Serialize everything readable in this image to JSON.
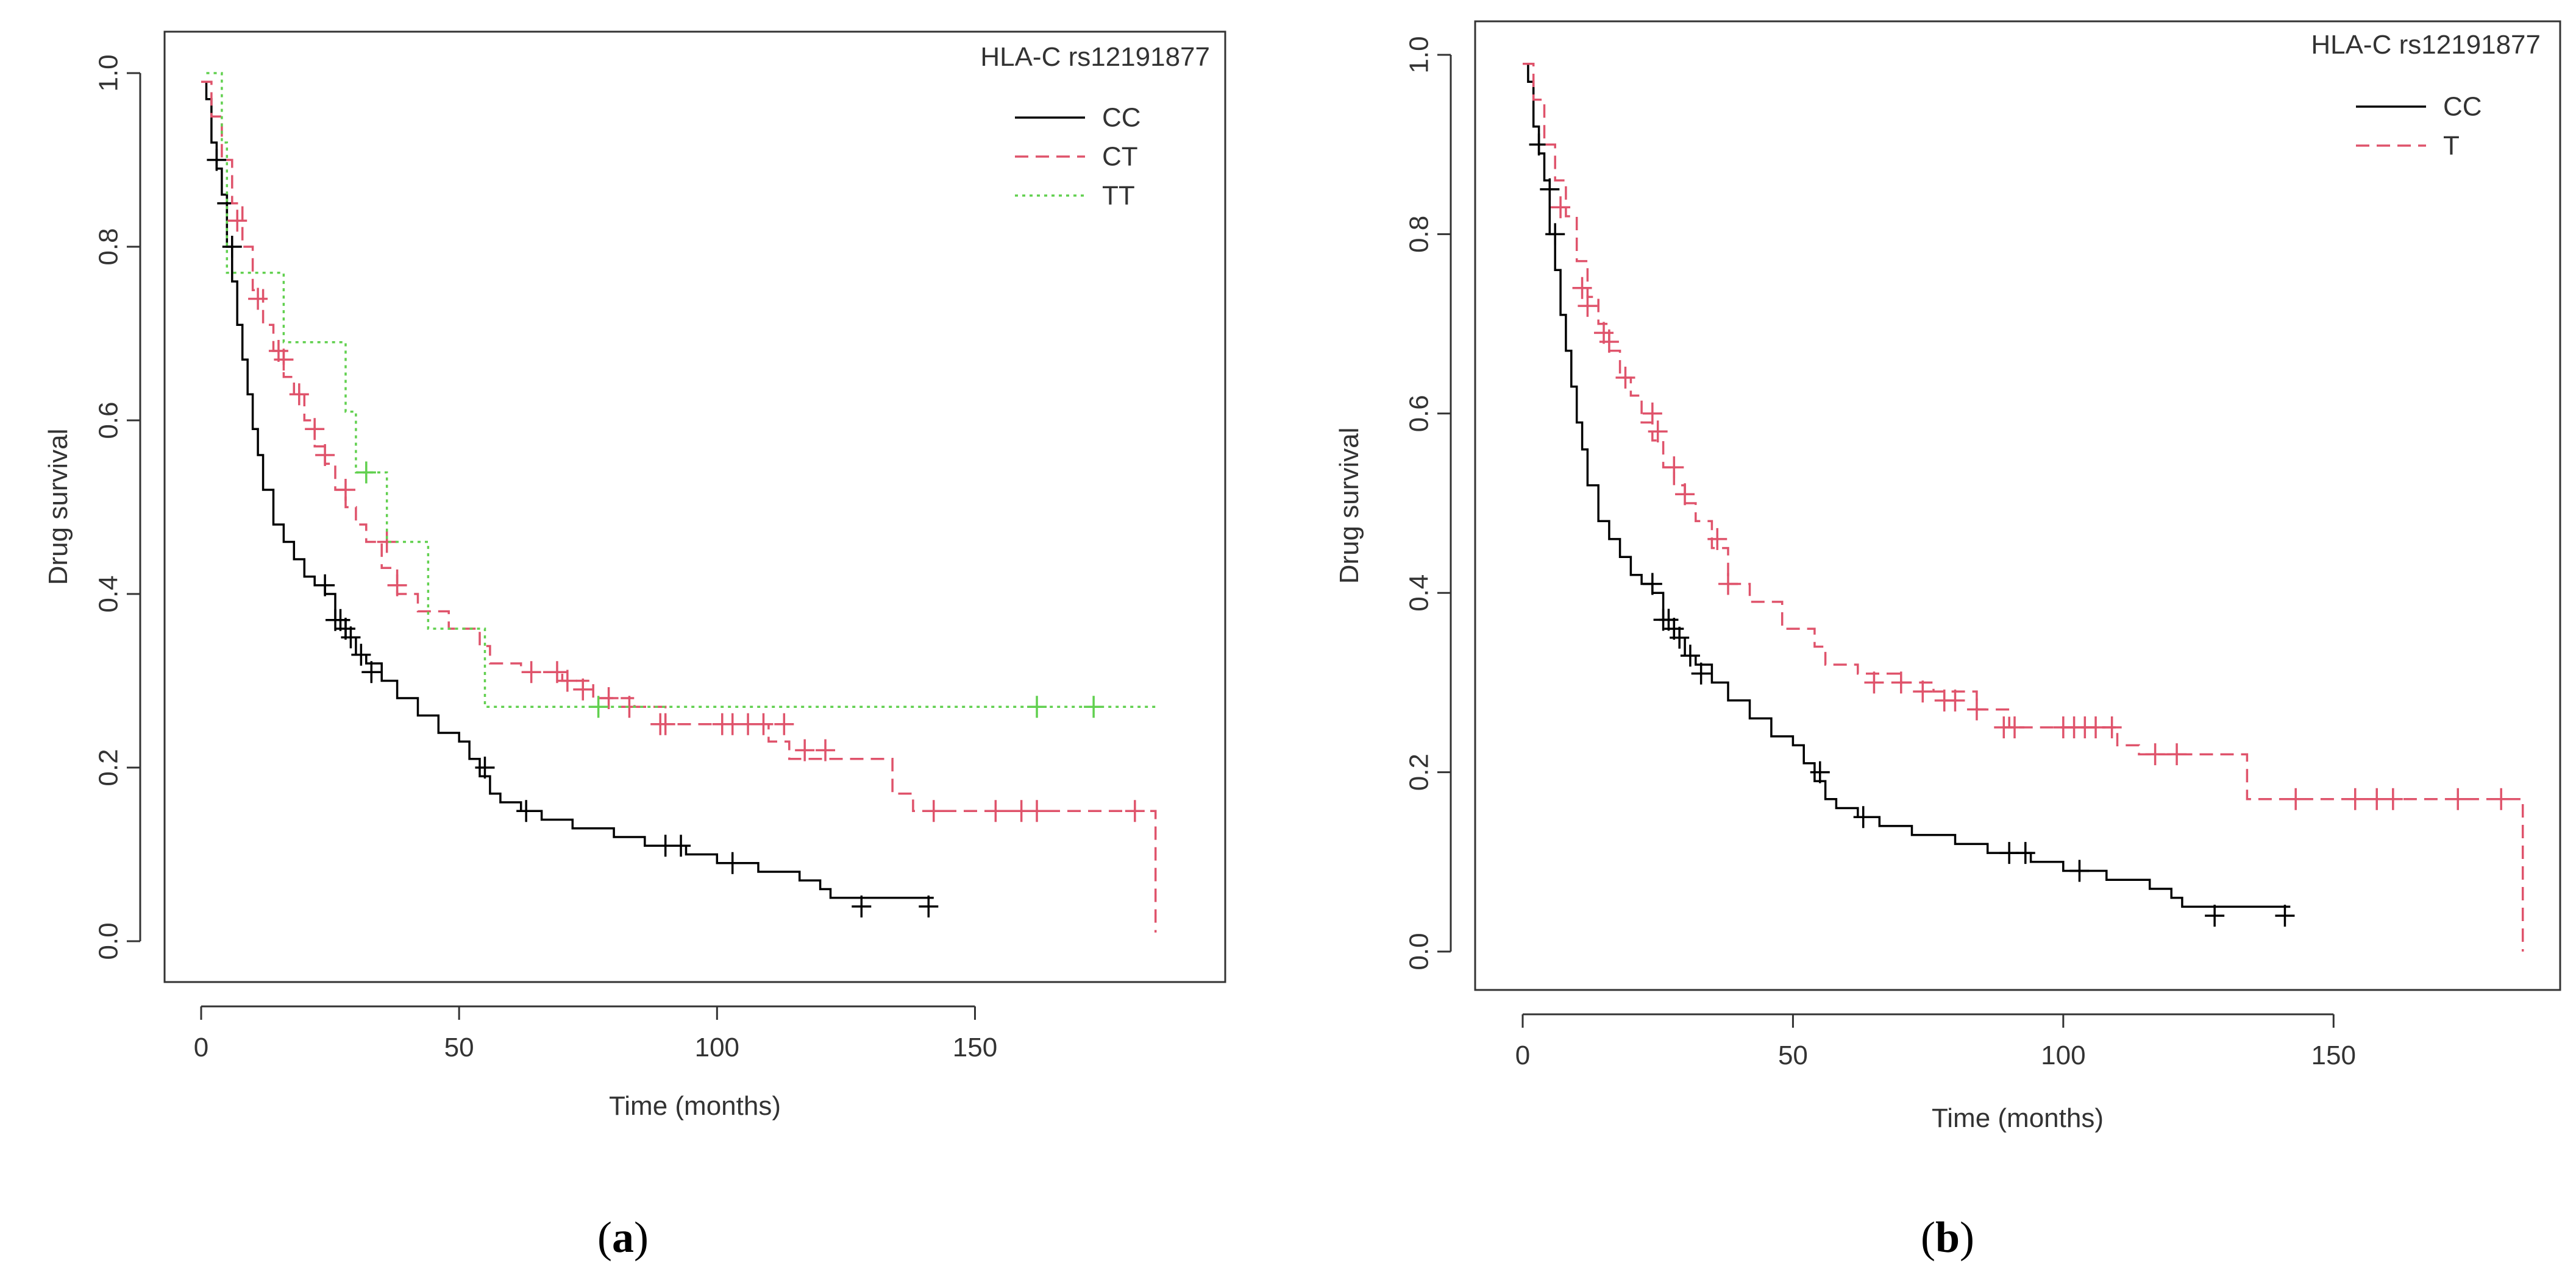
{
  "chart_data": [
    {
      "type": "line",
      "subtype": "kaplan-meier",
      "panel_label": "a",
      "xlabel": "Time (months)",
      "ylabel": "Drug survival",
      "xlim": [
        0,
        190
      ],
      "ylim": [
        0,
        1
      ],
      "xticks": [
        "0",
        "50",
        "100",
        "150"
      ],
      "xtick_values": [
        0,
        50,
        100,
        150
      ],
      "yticks": [
        "0.0",
        "0.2",
        "0.4",
        "0.6",
        "0.8",
        "1.0"
      ],
      "ytick_values": [
        0,
        0.2,
        0.4,
        0.6,
        0.8,
        1.0
      ],
      "legend_title": "HLA-C rs12191877",
      "legend_position": "top-right",
      "series": [
        {
          "name": "CC",
          "color": "#000000",
          "style": "solid",
          "x": [
            0,
            1,
            2,
            3,
            4,
            5,
            6,
            7,
            8,
            9,
            10,
            11,
            12,
            14,
            16,
            18,
            20,
            22,
            24,
            26,
            28,
            30,
            32,
            35,
            38,
            42,
            46,
            50,
            52,
            54,
            56,
            58,
            62,
            66,
            72,
            80,
            86,
            94,
            100,
            108,
            116,
            120,
            122,
            142
          ],
          "y": [
            0.99,
            0.97,
            0.92,
            0.89,
            0.86,
            0.8,
            0.76,
            0.71,
            0.67,
            0.63,
            0.59,
            0.56,
            0.52,
            0.48,
            0.46,
            0.44,
            0.42,
            0.41,
            0.4,
            0.37,
            0.35,
            0.33,
            0.32,
            0.3,
            0.28,
            0.26,
            0.24,
            0.23,
            0.21,
            0.19,
            0.17,
            0.16,
            0.15,
            0.14,
            0.13,
            0.12,
            0.11,
            0.1,
            0.09,
            0.08,
            0.07,
            0.06,
            0.05,
            0.05
          ],
          "censor_x": [
            3,
            5,
            6,
            24,
            26,
            27,
            28,
            29,
            31,
            33,
            55,
            63,
            90,
            93,
            103,
            128,
            141
          ],
          "censor_y": [
            0.9,
            0.85,
            0.8,
            0.41,
            0.37,
            0.37,
            0.36,
            0.35,
            0.33,
            0.31,
            0.2,
            0.15,
            0.11,
            0.11,
            0.09,
            0.04,
            0.04
          ]
        },
        {
          "name": "CT",
          "color": "#DF536B",
          "style": "dashed",
          "x": [
            0,
            2,
            4,
            6,
            8,
            10,
            12,
            14,
            16,
            18,
            20,
            22,
            24,
            26,
            28,
            30,
            32,
            35,
            38,
            42,
            48,
            54,
            56,
            62,
            70,
            76,
            84,
            90,
            100,
            110,
            114,
            134,
            138,
            184,
            185
          ],
          "y": [
            0.99,
            0.95,
            0.9,
            0.85,
            0.8,
            0.75,
            0.71,
            0.68,
            0.65,
            0.63,
            0.6,
            0.57,
            0.55,
            0.52,
            0.5,
            0.48,
            0.46,
            0.43,
            0.4,
            0.38,
            0.36,
            0.34,
            0.32,
            0.31,
            0.3,
            0.28,
            0.27,
            0.25,
            0.25,
            0.23,
            0.21,
            0.17,
            0.15,
            0.15,
            0.01
          ],
          "censor_x": [
            7,
            11,
            15,
            16,
            19,
            22,
            24,
            28,
            36,
            38,
            64,
            69,
            71,
            74,
            79,
            83,
            89,
            90,
            101,
            103,
            106,
            109,
            113,
            117,
            121,
            142,
            154,
            159,
            162,
            181
          ],
          "censor_y": [
            0.83,
            0.74,
            0.68,
            0.67,
            0.63,
            0.59,
            0.56,
            0.52,
            0.46,
            0.41,
            0.31,
            0.31,
            0.3,
            0.29,
            0.28,
            0.27,
            0.25,
            0.25,
            0.25,
            0.25,
            0.25,
            0.25,
            0.25,
            0.22,
            0.22,
            0.15,
            0.15,
            0.15,
            0.15,
            0.15
          ]
        },
        {
          "name": "TT",
          "color": "#61D04F",
          "style": "dotted",
          "x": [
            1,
            4,
            5,
            8,
            16,
            28,
            30,
            36,
            44,
            55,
            185
          ],
          "y": [
            1.0,
            0.92,
            0.77,
            0.77,
            0.69,
            0.61,
            0.54,
            0.46,
            0.36,
            0.27,
            0.27
          ],
          "censor_x": [
            32,
            77,
            162,
            173
          ],
          "censor_y": [
            0.54,
            0.27,
            0.27,
            0.27
          ]
        }
      ]
    },
    {
      "type": "line",
      "subtype": "kaplan-meier",
      "panel_label": "b",
      "xlabel": "Time (months)",
      "ylabel": "Drug survival",
      "xlim": [
        0,
        190
      ],
      "ylim": [
        0,
        1
      ],
      "xticks": [
        "0",
        "50",
        "100",
        "150"
      ],
      "xtick_values": [
        0,
        50,
        100,
        150
      ],
      "yticks": [
        "0.0",
        "0.2",
        "0.4",
        "0.6",
        "0.8",
        "1.0"
      ],
      "ytick_values": [
        0,
        0.2,
        0.4,
        0.6,
        0.8,
        1.0
      ],
      "legend_title": "HLA-C rs12191877",
      "legend_position": "top-right",
      "series": [
        {
          "name": "CC",
          "color": "#000000",
          "style": "solid",
          "x": [
            0,
            1,
            2,
            3,
            4,
            5,
            6,
            7,
            8,
            9,
            10,
            11,
            12,
            14,
            16,
            18,
            20,
            22,
            24,
            26,
            28,
            30,
            32,
            35,
            38,
            42,
            46,
            50,
            52,
            54,
            56,
            58,
            62,
            66,
            72,
            80,
            86,
            94,
            100,
            108,
            116,
            120,
            122,
            142
          ],
          "y": [
            0.99,
            0.97,
            0.92,
            0.89,
            0.86,
            0.8,
            0.76,
            0.71,
            0.67,
            0.63,
            0.59,
            0.56,
            0.52,
            0.48,
            0.46,
            0.44,
            0.42,
            0.41,
            0.4,
            0.37,
            0.35,
            0.33,
            0.32,
            0.3,
            0.28,
            0.26,
            0.24,
            0.23,
            0.21,
            0.19,
            0.17,
            0.16,
            0.15,
            0.14,
            0.13,
            0.12,
            0.11,
            0.1,
            0.09,
            0.08,
            0.07,
            0.06,
            0.05,
            0.05
          ],
          "censor_x": [
            3,
            5,
            6,
            24,
            26,
            27,
            28,
            29,
            31,
            33,
            55,
            63,
            90,
            93,
            103,
            128,
            141
          ],
          "censor_y": [
            0.9,
            0.85,
            0.8,
            0.41,
            0.37,
            0.37,
            0.36,
            0.35,
            0.33,
            0.31,
            0.2,
            0.15,
            0.11,
            0.11,
            0.09,
            0.04,
            0.04
          ]
        },
        {
          "name": "T",
          "color": "#DF536B",
          "style": "dashed",
          "x": [
            0,
            2,
            4,
            6,
            8,
            10,
            12,
            14,
            16,
            18,
            20,
            22,
            24,
            26,
            28,
            30,
            32,
            35,
            38,
            42,
            48,
            54,
            56,
            62,
            70,
            76,
            84,
            90,
            100,
            110,
            114,
            134,
            138,
            184,
            185
          ],
          "y": [
            0.99,
            0.95,
            0.9,
            0.86,
            0.82,
            0.77,
            0.73,
            0.7,
            0.67,
            0.64,
            0.62,
            0.59,
            0.57,
            0.54,
            0.52,
            0.5,
            0.48,
            0.45,
            0.41,
            0.39,
            0.36,
            0.34,
            0.32,
            0.31,
            0.3,
            0.29,
            0.27,
            0.25,
            0.25,
            0.23,
            0.22,
            0.17,
            0.17,
            0.17,
            0.0
          ],
          "censor_x": [
            7,
            11,
            12,
            15,
            16,
            19,
            24,
            25,
            28,
            30,
            36,
            38,
            65,
            70,
            74,
            78,
            80,
            84,
            89,
            91,
            100,
            102,
            104,
            106,
            109,
            117,
            121,
            143,
            154,
            158,
            161,
            173,
            181
          ],
          "censor_y": [
            0.83,
            0.74,
            0.72,
            0.69,
            0.68,
            0.64,
            0.6,
            0.58,
            0.54,
            0.51,
            0.46,
            0.41,
            0.3,
            0.3,
            0.29,
            0.28,
            0.28,
            0.27,
            0.25,
            0.25,
            0.25,
            0.25,
            0.25,
            0.25,
            0.25,
            0.22,
            0.22,
            0.17,
            0.17,
            0.17,
            0.17,
            0.17,
            0.17
          ]
        }
      ]
    }
  ]
}
